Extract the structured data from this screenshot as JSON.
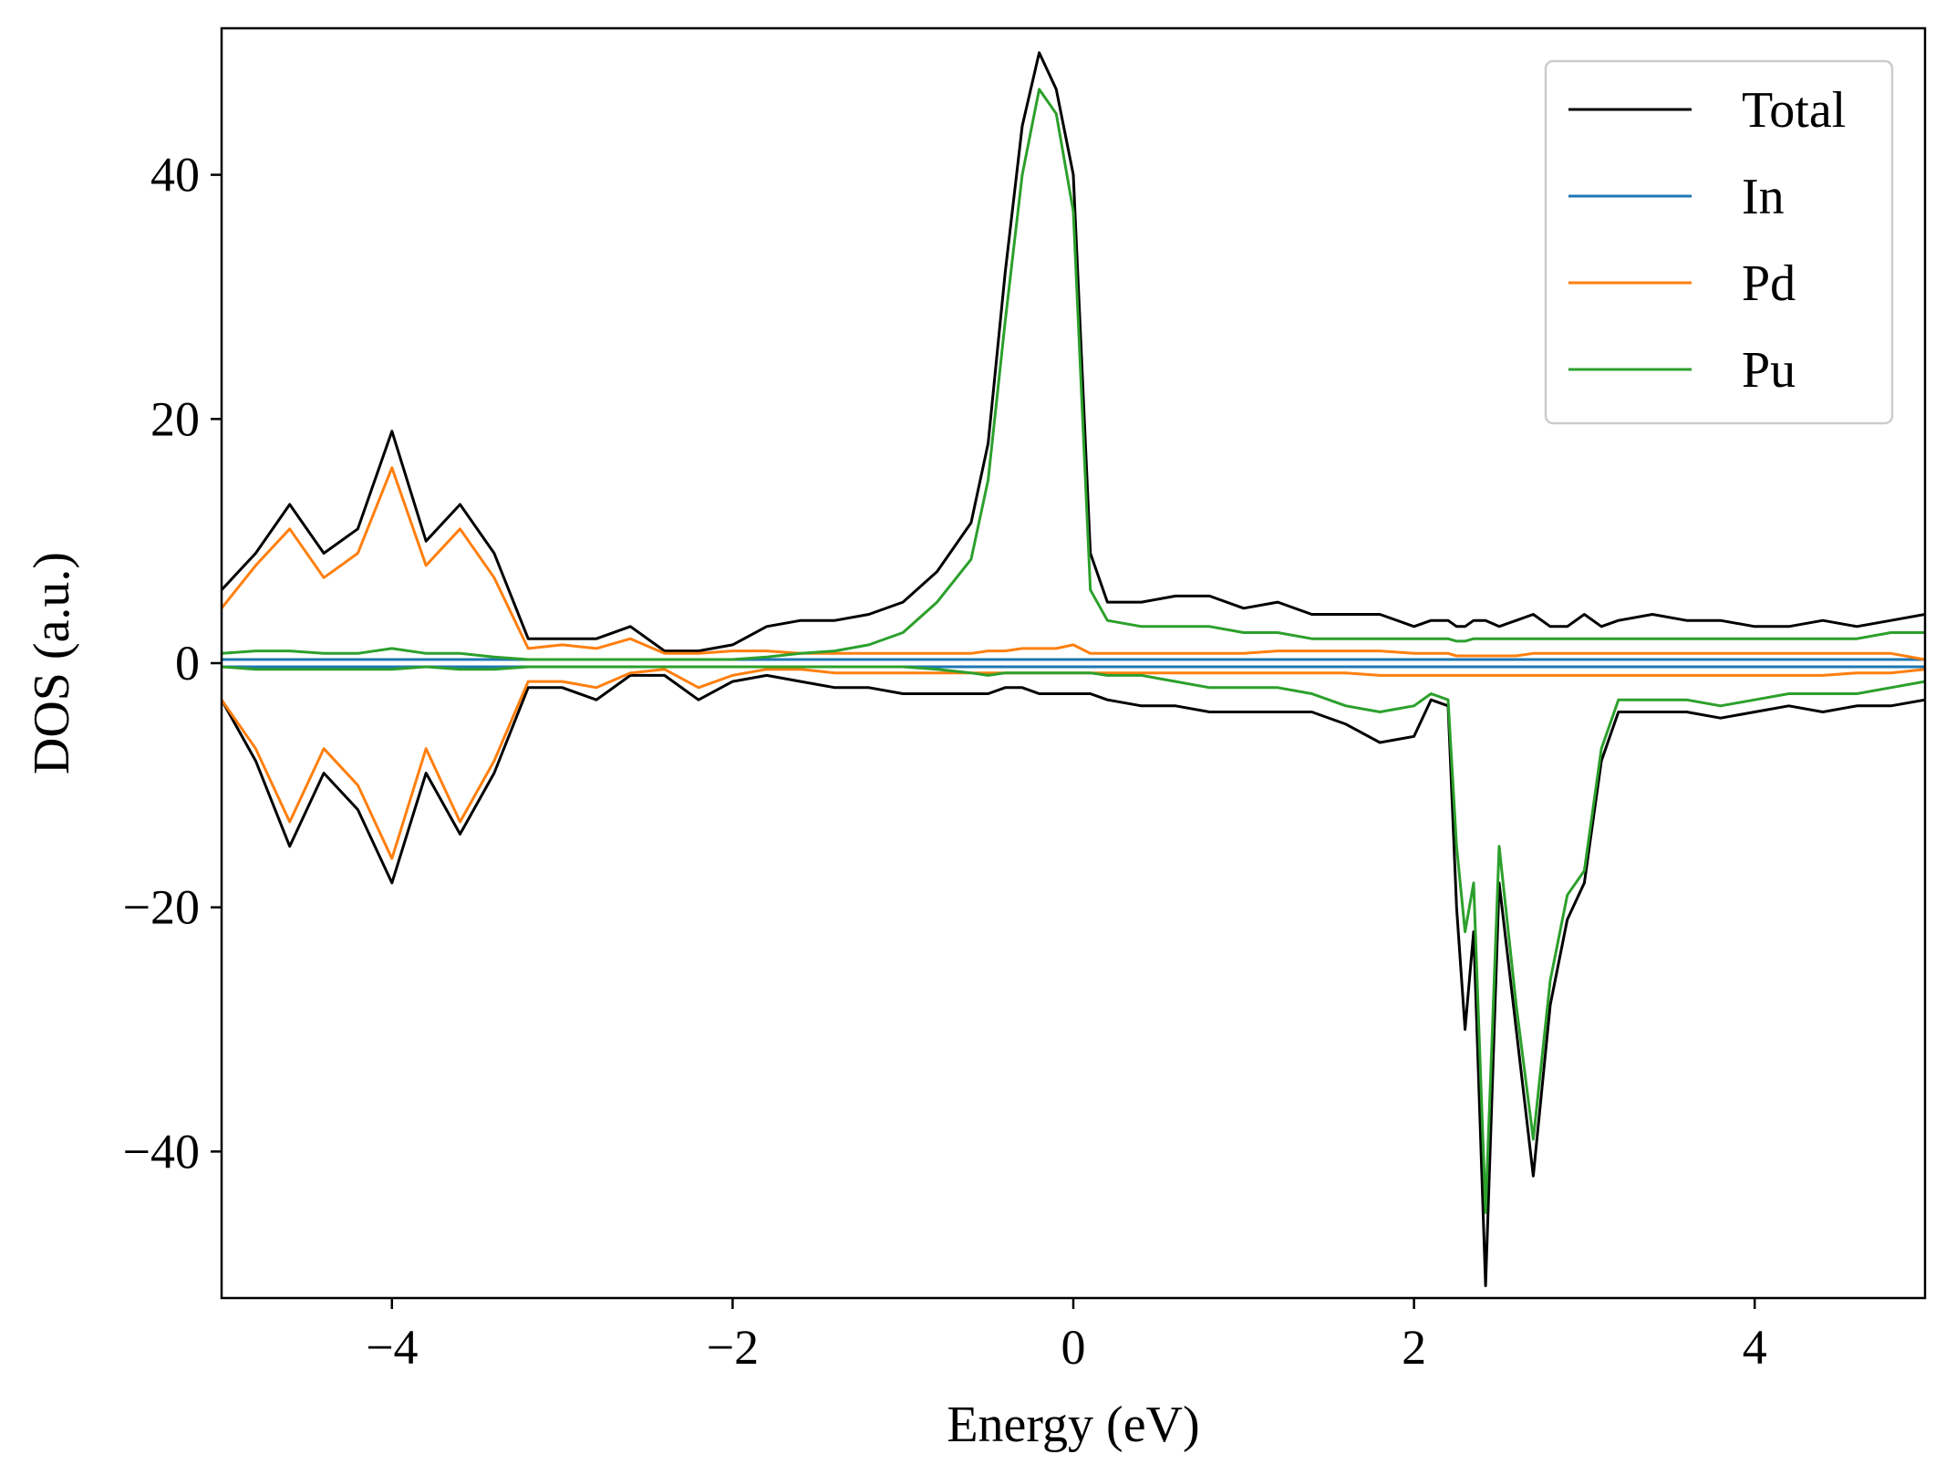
{
  "chart_data": {
    "type": "line",
    "title": "",
    "xlabel": "Energy (eV)",
    "ylabel": "DOS (a.u.)",
    "xlim": [
      -5,
      5
    ],
    "ylim": [
      -52,
      52
    ],
    "xticks": [
      -4,
      -2,
      0,
      2,
      4
    ],
    "xtick_labels": [
      "−4",
      "−2",
      "0",
      "2",
      "4"
    ],
    "yticks": [
      -40,
      -20,
      0,
      20,
      40
    ],
    "ytick_labels": [
      "−40",
      "−20",
      "0",
      "20",
      "40"
    ],
    "legend_position": "top-right",
    "grid": false,
    "x": [
      -5.0,
      -4.8,
      -4.6,
      -4.4,
      -4.2,
      -4.0,
      -3.8,
      -3.6,
      -3.4,
      -3.2,
      -3.0,
      -2.8,
      -2.6,
      -2.4,
      -2.2,
      -2.0,
      -1.8,
      -1.6,
      -1.4,
      -1.2,
      -1.0,
      -0.8,
      -0.6,
      -0.5,
      -0.4,
      -0.3,
      -0.2,
      -0.1,
      0.0,
      0.1,
      0.2,
      0.4,
      0.6,
      0.8,
      1.0,
      1.2,
      1.4,
      1.6,
      1.8,
      2.0,
      2.1,
      2.2,
      2.25,
      2.3,
      2.35,
      2.42,
      2.5,
      2.6,
      2.7,
      2.8,
      2.9,
      3.0,
      3.1,
      3.2,
      3.4,
      3.6,
      3.8,
      4.0,
      4.2,
      4.4,
      4.6,
      4.8,
      5.0
    ],
    "series": [
      {
        "name": "Total",
        "color": "#000000",
        "up": [
          6,
          9,
          13,
          9,
          11,
          19,
          10,
          13,
          9,
          2,
          2,
          2,
          3,
          1,
          1,
          1.5,
          3,
          3.5,
          3.5,
          4,
          5,
          7.5,
          11.5,
          18,
          32,
          44,
          50,
          47,
          40,
          9,
          5,
          5,
          5.5,
          5.5,
          4.5,
          5,
          4,
          4,
          4,
          3,
          3.5,
          3.5,
          3,
          3,
          3.5,
          3.5,
          3,
          3.5,
          4,
          3,
          3,
          4,
          3,
          3.5,
          4,
          3.5,
          3.5,
          3,
          3,
          3.5,
          3,
          3.5,
          4
        ],
        "down": [
          -3,
          -8,
          -15,
          -9,
          -12,
          -18,
          -9,
          -14,
          -9,
          -2,
          -2,
          -3,
          -1,
          -1,
          -3,
          -1.5,
          -1,
          -1.5,
          -2,
          -2,
          -2.5,
          -2.5,
          -2.5,
          -2.5,
          -2,
          -2,
          -2.5,
          -2.5,
          -2.5,
          -2.5,
          -3,
          -3.5,
          -3.5,
          -4,
          -4,
          -4,
          -4,
          -5,
          -6.5,
          -6,
          -3,
          -3.5,
          -20,
          -30,
          -22,
          -51,
          -18,
          -30,
          -42,
          -28,
          -21,
          -18,
          -8,
          -4,
          -4,
          -4,
          -4.5,
          -4,
          -3.5,
          -4,
          -3.5,
          -3.5,
          -3
        ]
      },
      {
        "name": "In",
        "color": "#1f77b4",
        "up": [
          0.3,
          0.3,
          0.3,
          0.3,
          0.3,
          0.3,
          0.3,
          0.3,
          0.3,
          0.3,
          0.3,
          0.3,
          0.3,
          0.3,
          0.3,
          0.3,
          0.3,
          0.3,
          0.3,
          0.3,
          0.3,
          0.3,
          0.3,
          0.3,
          0.3,
          0.3,
          0.3,
          0.3,
          0.3,
          0.3,
          0.3,
          0.3,
          0.3,
          0.3,
          0.3,
          0.3,
          0.3,
          0.3,
          0.3,
          0.3,
          0.3,
          0.3,
          0.3,
          0.3,
          0.3,
          0.3,
          0.3,
          0.3,
          0.3,
          0.3,
          0.3,
          0.3,
          0.3,
          0.3,
          0.3,
          0.3,
          0.3,
          0.3,
          0.3,
          0.3,
          0.3,
          0.3,
          0.3
        ],
        "down": [
          -0.3,
          -0.3,
          -0.3,
          -0.3,
          -0.3,
          -0.3,
          -0.3,
          -0.3,
          -0.3,
          -0.3,
          -0.3,
          -0.3,
          -0.3,
          -0.3,
          -0.3,
          -0.3,
          -0.3,
          -0.3,
          -0.3,
          -0.3,
          -0.3,
          -0.3,
          -0.3,
          -0.3,
          -0.3,
          -0.3,
          -0.3,
          -0.3,
          -0.3,
          -0.3,
          -0.3,
          -0.3,
          -0.3,
          -0.3,
          -0.3,
          -0.3,
          -0.3,
          -0.3,
          -0.3,
          -0.3,
          -0.3,
          -0.3,
          -0.3,
          -0.3,
          -0.3,
          -0.3,
          -0.3,
          -0.3,
          -0.3,
          -0.3,
          -0.3,
          -0.3,
          -0.3,
          -0.3,
          -0.3,
          -0.3,
          -0.3,
          -0.3,
          -0.3,
          -0.3,
          -0.3,
          -0.3,
          -0.3
        ]
      },
      {
        "name": "Pd",
        "color": "#ff7f0e",
        "up": [
          4.5,
          8,
          11,
          7,
          9,
          16,
          8,
          11,
          7,
          1.2,
          1.5,
          1.2,
          2,
          0.8,
          0.8,
          1,
          1,
          0.8,
          0.8,
          0.8,
          0.8,
          0.8,
          0.8,
          1,
          1,
          1.2,
          1.2,
          1.2,
          1.5,
          0.8,
          0.8,
          0.8,
          0.8,
          0.8,
          0.8,
          1,
          1,
          1,
          1,
          0.8,
          0.8,
          0.8,
          0.6,
          0.6,
          0.6,
          0.6,
          0.6,
          0.6,
          0.8,
          0.8,
          0.8,
          0.8,
          0.8,
          0.8,
          0.8,
          0.8,
          0.8,
          0.8,
          0.8,
          0.8,
          0.8,
          0.8,
          0.3
        ],
        "down": [
          -3,
          -7,
          -13,
          -7,
          -10,
          -16,
          -7,
          -13,
          -8,
          -1.5,
          -1.5,
          -2,
          -0.8,
          -0.5,
          -2,
          -1,
          -0.5,
          -0.5,
          -0.8,
          -0.8,
          -0.8,
          -0.8,
          -0.8,
          -0.8,
          -0.8,
          -0.8,
          -0.8,
          -0.8,
          -0.8,
          -0.8,
          -0.8,
          -0.8,
          -0.8,
          -0.8,
          -0.8,
          -0.8,
          -0.8,
          -0.8,
          -1,
          -1,
          -1,
          -1,
          -1,
          -1,
          -1,
          -1,
          -1,
          -1,
          -1,
          -1,
          -1,
          -1,
          -1,
          -1,
          -1,
          -1,
          -1,
          -1,
          -1,
          -1,
          -0.8,
          -0.8,
          -0.5
        ]
      },
      {
        "name": "Pu",
        "color": "#2ca02c",
        "up": [
          0.8,
          1,
          1,
          0.8,
          0.8,
          1.2,
          0.8,
          0.8,
          0.5,
          0.3,
          0.3,
          0.3,
          0.3,
          0.3,
          0.3,
          0.3,
          0.5,
          0.8,
          1,
          1.5,
          2.5,
          5,
          8.5,
          15,
          28,
          40,
          47,
          45,
          37,
          6,
          3.5,
          3,
          3,
          3,
          2.5,
          2.5,
          2,
          2,
          2,
          2,
          2,
          2,
          1.8,
          1.8,
          2,
          2,
          2,
          2,
          2,
          2,
          2,
          2,
          2,
          2,
          2,
          2,
          2,
          2,
          2,
          2,
          2,
          2.5,
          2.5
        ],
        "down": [
          -0.3,
          -0.5,
          -0.5,
          -0.5,
          -0.5,
          -0.5,
          -0.3,
          -0.5,
          -0.5,
          -0.3,
          -0.3,
          -0.3,
          -0.3,
          -0.3,
          -0.3,
          -0.3,
          -0.3,
          -0.3,
          -0.3,
          -0.3,
          -0.3,
          -0.5,
          -0.8,
          -1,
          -0.8,
          -0.8,
          -0.8,
          -0.8,
          -0.8,
          -0.8,
          -1,
          -1,
          -1.5,
          -2,
          -2,
          -2,
          -2.5,
          -3.5,
          -4,
          -3.5,
          -2.5,
          -3,
          -15,
          -22,
          -18,
          -45,
          -15,
          -28,
          -39,
          -26,
          -19,
          -17,
          -7,
          -3,
          -3,
          -3,
          -3.5,
          -3,
          -2.5,
          -2.5,
          -2.5,
          -2,
          -1.5
        ]
      }
    ]
  }
}
